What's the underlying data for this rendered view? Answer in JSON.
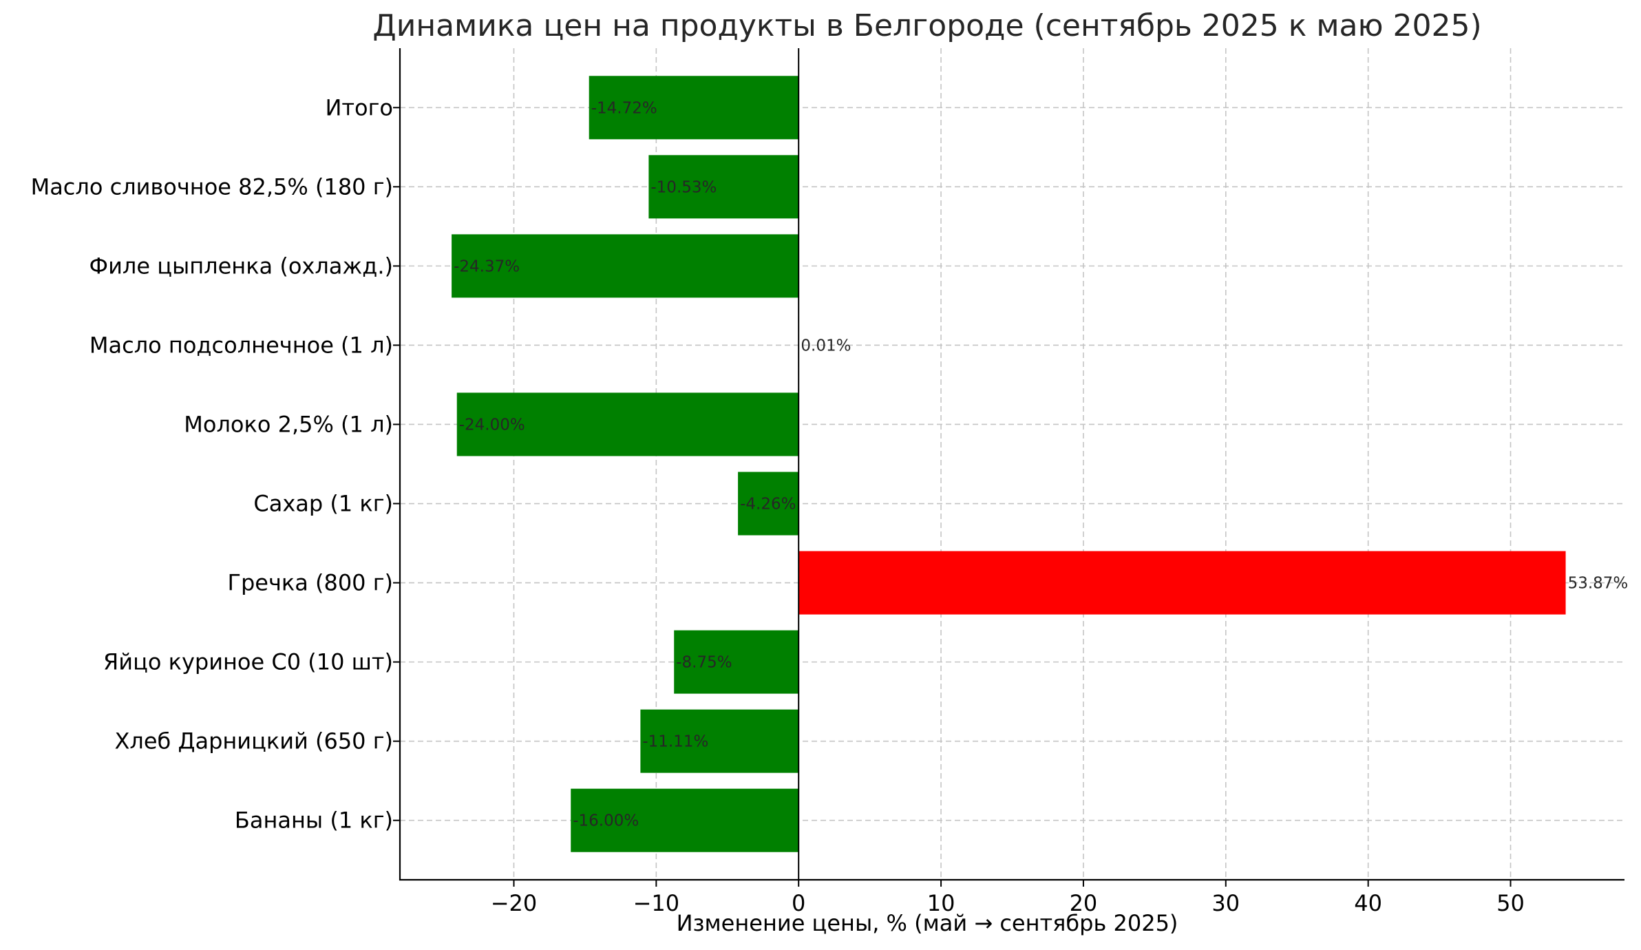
{
  "chart_data": {
    "type": "bar",
    "orientation": "horizontal",
    "title": "Динамика цен на продукты в Белгороде (сентябрь 2025 к маю 2025)",
    "xlabel": "Изменение цены, % (май → сентябрь 2025)",
    "ylabel": "",
    "xlim": [
      -28,
      58
    ],
    "xticks": [
      -20,
      -10,
      0,
      10,
      20,
      30,
      40,
      50
    ],
    "xtick_labels": [
      "−20",
      "−10",
      "0",
      "10",
      "20",
      "30",
      "40",
      "50"
    ],
    "grid": true,
    "zero_line": true,
    "colors": {
      "decrease": "#008000",
      "increase": "#ff0000",
      "zero": "#008000"
    },
    "categories": [
      "Бананы (1 кг)",
      "Хлеб Дарницкий (650 г)",
      "Яйцо куриное С0 (10 шт)",
      "Гречка (800 г)",
      "Сахар (1 кг)",
      "Молоко 2,5% (1 л)",
      "Масло подсолнечное (1 л)",
      "Филе цыпленка (охлажд.)",
      "Масло сливочное 82,5% (180 г)",
      "Итого"
    ],
    "values": [
      -16.0,
      -11.11,
      -8.75,
      53.87,
      -4.26,
      -24.0,
      0.01,
      -24.37,
      -10.53,
      -14.72
    ],
    "data_labels": [
      "-16.00%",
      "-11.11%",
      "-8.75%",
      "53.87%",
      "-4.26%",
      "-24.00%",
      "0.01%",
      "-24.37%",
      "-10.53%",
      "-14.72%"
    ]
  }
}
